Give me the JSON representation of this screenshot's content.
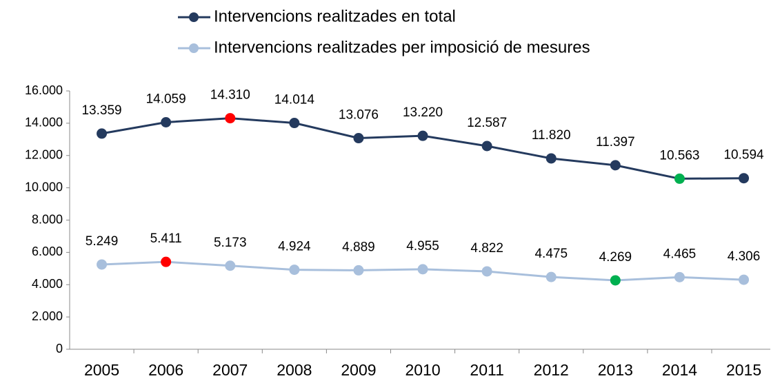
{
  "chart_data": {
    "type": "line",
    "categories": [
      "2005",
      "2006",
      "2007",
      "2008",
      "2009",
      "2010",
      "2011",
      "2012",
      "2013",
      "2014",
      "2015"
    ],
    "series": [
      {
        "name": "Intervencions realitzades en total",
        "color": "#243a5e",
        "values": [
          13359,
          14059,
          14310,
          14014,
          13076,
          13220,
          12587,
          11820,
          11397,
          10563,
          10594
        ],
        "value_labels": [
          "13.359",
          "14.059",
          "14.310",
          "14.014",
          "13.076",
          "13.220",
          "12.587",
          "11.820",
          "11.397",
          "10.563",
          "10.594"
        ],
        "point_colors": [
          "#243a5e",
          "#243a5e",
          "#ff0000",
          "#243a5e",
          "#243a5e",
          "#243a5e",
          "#243a5e",
          "#243a5e",
          "#243a5e",
          "#00b050",
          "#243a5e"
        ]
      },
      {
        "name": "Intervencions realitzades per imposició de mesures",
        "color": "#a8bfdc",
        "values": [
          5249,
          5411,
          5173,
          4924,
          4889,
          4955,
          4822,
          4475,
          4269,
          4465,
          4306
        ],
        "value_labels": [
          "5.249",
          "5.411",
          "5.173",
          "4.924",
          "4.889",
          "4.955",
          "4.822",
          "4.475",
          "4.269",
          "4.465",
          "4.306"
        ],
        "point_colors": [
          "#a8bfdc",
          "#ff0000",
          "#a8bfdc",
          "#a8bfdc",
          "#a8bfdc",
          "#a8bfdc",
          "#a8bfdc",
          "#a8bfdc",
          "#00b050",
          "#a8bfdc",
          "#a8bfdc"
        ]
      }
    ],
    "ylim": [
      0,
      16000
    ],
    "yticks": [
      0,
      {
        "value": 2000,
        "label": "2.000"
      },
      {
        "value": 4000,
        "label": "4.000"
      },
      {
        "value": 6000,
        "label": "6.000"
      },
      {
        "value": 8000,
        "label": "8.000"
      },
      {
        "value": 10000,
        "label": "10.000"
      },
      {
        "value": 12000,
        "label": "12.000"
      },
      {
        "value": 14000,
        "label": "14.000"
      },
      {
        "value": 16000,
        "label": "16.000"
      }
    ],
    "grid": false,
    "legend": "top"
  }
}
